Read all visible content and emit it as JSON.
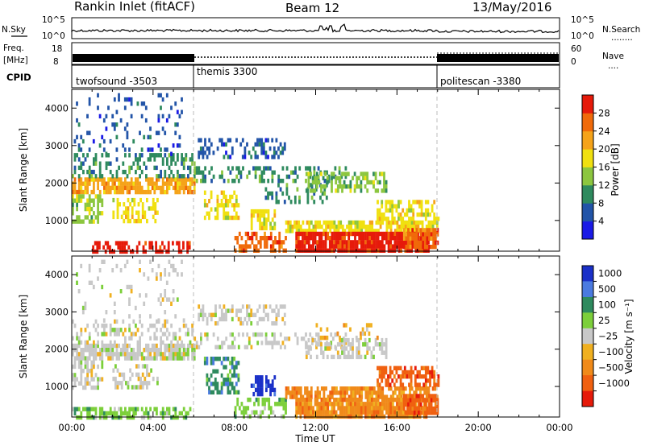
{
  "header": {
    "station": "Rankin Inlet (fitACF)",
    "beam": "Beam 12",
    "date": "13/May/2016"
  },
  "top_panels": {
    "nsky": {
      "left_label": "N.Sky",
      "right_label": "N.Search",
      "right_label_dots": "........",
      "left_ticks": [
        "10^5",
        "10^0"
      ],
      "right_ticks": [
        "10^5",
        "10^0"
      ]
    },
    "freq": {
      "left_label_1": "Freq.",
      "left_label_2": "[MHz]",
      "left_ticks": [
        "18",
        "8"
      ],
      "right_label": "Nave",
      "right_label_dots": "....",
      "right_ticks": [
        "60",
        "0"
      ]
    },
    "cpid": {
      "label": "CPID",
      "segments": [
        {
          "name": "twofsound -3503",
          "start_hr": 0,
          "end_hr": 6
        },
        {
          "name": "themis 3300",
          "start_hr": 6,
          "end_hr": 18
        },
        {
          "name": "politescan -3380",
          "start_hr": 18,
          "end_hr": 24
        }
      ]
    }
  },
  "chart_data": [
    {
      "type": "heatmap",
      "name": "power",
      "x_range_hr": [
        0,
        24
      ],
      "y_range_km": [
        180,
        4500
      ],
      "ylabel": "Slant Range [km]",
      "yticks": [
        1000,
        2000,
        3000,
        4000
      ],
      "colorbar_label": "Power [dB]",
      "colorbar_ticks": [
        4,
        8,
        12,
        16,
        20,
        24,
        28
      ],
      "colorbar_range": [
        0,
        32
      ],
      "colors": [
        "#1a1ae6",
        "#2254a8",
        "#2e8a5e",
        "#8cc63f",
        "#f0e010",
        "#f5a31a",
        "#f06a0a",
        "#e61a0a"
      ],
      "blobs": [
        {
          "x0": 0.0,
          "x1": 6.0,
          "y0": 1750,
          "y1": 2150,
          "level": 5,
          "density": 0.75
        },
        {
          "x0": 0.0,
          "x1": 6.0,
          "y0": 2200,
          "y1": 2800,
          "level": 2,
          "density": 0.35
        },
        {
          "x0": 0.1,
          "x1": 5.5,
          "y0": 2800,
          "y1": 4400,
          "level": 1,
          "density": 0.12
        },
        {
          "x0": 0.0,
          "x1": 1.5,
          "y0": 1000,
          "y1": 1700,
          "level": 3,
          "density": 0.55
        },
        {
          "x0": 2.0,
          "x1": 4.2,
          "y0": 1000,
          "y1": 1600,
          "level": 4,
          "density": 0.45
        },
        {
          "x0": 1.0,
          "x1": 5.8,
          "y0": 180,
          "y1": 450,
          "level": 7,
          "density": 0.55
        },
        {
          "x0": 6.2,
          "x1": 10.5,
          "y0": 2700,
          "y1": 3200,
          "level": 1,
          "density": 0.35
        },
        {
          "x0": 6.0,
          "x1": 13.5,
          "y0": 2050,
          "y1": 2450,
          "level": 2,
          "density": 0.35
        },
        {
          "x0": 6.5,
          "x1": 8.2,
          "y0": 1100,
          "y1": 1800,
          "level": 4,
          "density": 0.45
        },
        {
          "x0": 8.8,
          "x1": 10.0,
          "y0": 800,
          "y1": 1300,
          "level": 4,
          "density": 0.55
        },
        {
          "x0": 9.5,
          "x1": 12.5,
          "y0": 1500,
          "y1": 2000,
          "level": 2,
          "density": 0.3
        },
        {
          "x0": 11.5,
          "x1": 15.5,
          "y0": 1800,
          "y1": 2300,
          "level": 3,
          "density": 0.45
        },
        {
          "x0": 8.0,
          "x1": 10.5,
          "y0": 200,
          "y1": 700,
          "level": 6,
          "density": 0.55
        },
        {
          "x0": 10.5,
          "x1": 18.0,
          "y0": 700,
          "y1": 1000,
          "level": 4,
          "density": 0.75
        },
        {
          "x0": 15.0,
          "x1": 18.0,
          "y0": 1000,
          "y1": 1550,
          "level": 4,
          "density": 0.6
        },
        {
          "x0": 11.0,
          "x1": 17.5,
          "y0": 250,
          "y1": 700,
          "level": 7,
          "density": 0.92
        },
        {
          "x0": 16.3,
          "x1": 18.0,
          "y0": 350,
          "y1": 800,
          "level": 6,
          "density": 0.85
        }
      ]
    },
    {
      "type": "heatmap",
      "name": "velocity",
      "x_range_hr": [
        0,
        24
      ],
      "y_range_km": [
        180,
        4500
      ],
      "ylabel": "Slant Range [km]",
      "yticks": [
        1000,
        2000,
        3000,
        4000
      ],
      "colorbar_label": "Velocity [m s⁻¹]",
      "colorbar_ticks": [
        "1000",
        "500",
        "100",
        "25",
        "−25",
        "−100",
        "−500",
        "−1000"
      ],
      "colors": [
        "#1a30c8",
        "#4a7ae0",
        "#2e8a5e",
        "#7ccf3a",
        "#c8c8c8",
        "#f0b020",
        "#f08a1a",
        "#f06010",
        "#e61a0a"
      ],
      "blobs": [
        {
          "x0": 0.0,
          "x1": 6.0,
          "y0": 1750,
          "y1": 2150,
          "level": 4,
          "density": 0.8
        },
        {
          "x0": 0.0,
          "x1": 6.0,
          "y0": 2200,
          "y1": 2800,
          "level": 4,
          "density": 0.3
        },
        {
          "x0": 0.1,
          "x1": 5.5,
          "y0": 2800,
          "y1": 4400,
          "level": 4,
          "density": 0.12
        },
        {
          "x0": 0.0,
          "x1": 1.5,
          "y0": 1000,
          "y1": 1700,
          "level": 4,
          "density": 0.5
        },
        {
          "x0": 2.0,
          "x1": 4.2,
          "y0": 1000,
          "y1": 1600,
          "level": 4,
          "density": 0.4
        },
        {
          "x0": 0.0,
          "x1": 5.8,
          "y0": 180,
          "y1": 450,
          "level": 3,
          "density": 0.55
        },
        {
          "x0": 6.2,
          "x1": 10.5,
          "y0": 2700,
          "y1": 3200,
          "level": 4,
          "density": 0.4
        },
        {
          "x0": 6.0,
          "x1": 13.5,
          "y0": 2050,
          "y1": 2450,
          "level": 4,
          "density": 0.35
        },
        {
          "x0": 6.5,
          "x1": 8.2,
          "y0": 900,
          "y1": 1800,
          "level": 2,
          "density": 0.5
        },
        {
          "x0": 8.8,
          "x1": 10.0,
          "y0": 800,
          "y1": 1300,
          "level": 0,
          "density": 0.6
        },
        {
          "x0": 11.5,
          "x1": 15.5,
          "y0": 1800,
          "y1": 2300,
          "level": 4,
          "density": 0.45
        },
        {
          "x0": 12.0,
          "x1": 15.0,
          "y0": 2300,
          "y1": 2700,
          "level": 5,
          "density": 0.2
        },
        {
          "x0": 8.0,
          "x1": 10.5,
          "y0": 200,
          "y1": 700,
          "level": 3,
          "density": 0.5
        },
        {
          "x0": 10.5,
          "x1": 18.0,
          "y0": 700,
          "y1": 1000,
          "level": 6,
          "density": 0.75
        },
        {
          "x0": 15.0,
          "x1": 18.0,
          "y0": 1000,
          "y1": 1550,
          "level": 7,
          "density": 0.6
        },
        {
          "x0": 11.0,
          "x1": 17.5,
          "y0": 250,
          "y1": 700,
          "level": 6,
          "density": 0.9
        },
        {
          "x0": 16.3,
          "x1": 18.0,
          "y0": 350,
          "y1": 800,
          "level": 7,
          "density": 0.85
        }
      ]
    }
  ],
  "xaxis": {
    "label": "Time UT",
    "ticks": [
      "00:00",
      "04:00",
      "08:00",
      "12:00",
      "16:00",
      "20:00",
      "00:00"
    ]
  }
}
